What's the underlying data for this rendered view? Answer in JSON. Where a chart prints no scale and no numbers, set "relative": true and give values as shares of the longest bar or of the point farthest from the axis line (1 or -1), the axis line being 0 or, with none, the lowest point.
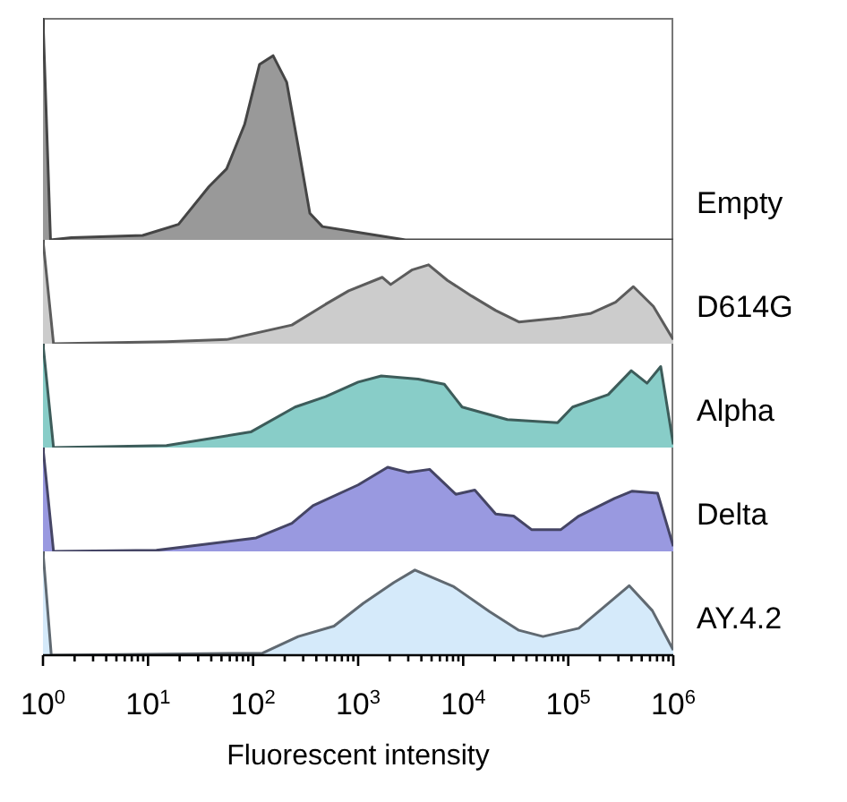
{
  "chart_data": [
    {
      "type": "area",
      "relative": true,
      "log": "x",
      "xlim": [
        1,
        1000000
      ],
      "tick_labels": false,
      "series": [
        {
          "name": "Empty",
          "color": "#999999",
          "x": [
            1,
            1.18,
            1.86,
            8.9,
            19.5,
            38,
            56,
            83,
            115,
            155,
            209,
            269,
            347,
            457,
            1120,
            2820,
            1000000
          ],
          "values": [
            1,
            0,
            0.01,
            0.02,
            0.07,
            0.24,
            0.32,
            0.52,
            0.79,
            0.83,
            0.71,
            0.42,
            0.12,
            0.06,
            0.03,
            0,
            0
          ]
        }
      ]
    },
    {
      "type": "area",
      "relative": true,
      "log": "x",
      "xlim": [
        1,
        1000000
      ],
      "tick_labels": false,
      "series": [
        {
          "name": "D614G",
          "color": "#cccccc",
          "x": [
            1,
            1.26,
            15,
            56,
            234,
            490,
            813,
            1700,
            2040,
            3240,
            4680,
            7080,
            12000,
            20400,
            33900,
            85100,
            162000,
            282000,
            417000,
            646000,
            1000000
          ],
          "values": [
            1,
            0,
            0.02,
            0.04,
            0.18,
            0.38,
            0.51,
            0.64,
            0.57,
            0.71,
            0.76,
            0.61,
            0.46,
            0.32,
            0.21,
            0.25,
            0.29,
            0.4,
            0.55,
            0.36,
            0.04
          ]
        }
      ]
    },
    {
      "type": "area",
      "relative": true,
      "log": "x",
      "xlim": [
        1,
        1000000
      ],
      "tick_labels": false,
      "series": [
        {
          "name": "Alpha",
          "color": "#88cdc8",
          "x": [
            1,
            1.26,
            15,
            95,
            251,
            490,
            1000,
            1660,
            3720,
            6610,
            9770,
            26300,
            79400,
            110000,
            240000,
            398000,
            562000,
            759000,
            1000000
          ],
          "values": [
            1,
            0,
            0.02,
            0.15,
            0.39,
            0.49,
            0.63,
            0.69,
            0.66,
            0.61,
            0.39,
            0.27,
            0.24,
            0.39,
            0.51,
            0.74,
            0.62,
            0.78,
            0.03
          ]
        }
      ]
    },
    {
      "type": "area",
      "relative": true,
      "log": "x",
      "xlim": [
        1,
        1000000
      ],
      "tick_labels": false,
      "series": [
        {
          "name": "Delta",
          "color": "#9999e0",
          "x": [
            1,
            1.26,
            12,
            107,
            234,
            372,
            1000,
            1910,
            3020,
            4790,
            8510,
            12900,
            20400,
            30200,
            44700,
            85100,
            126000,
            275000,
            407000,
            708000,
            1000000
          ],
          "values": [
            1,
            0,
            0.01,
            0.13,
            0.27,
            0.44,
            0.64,
            0.81,
            0.76,
            0.79,
            0.55,
            0.59,
            0.36,
            0.34,
            0.21,
            0.21,
            0.34,
            0.51,
            0.58,
            0.56,
            0.05
          ]
        }
      ]
    },
    {
      "type": "area",
      "relative": true,
      "log": "x",
      "xlim": [
        1,
        1000000
      ],
      "tick_labels": "x",
      "xlabel": "Fluorescent intensity",
      "xticks": [
        {
          "value": 1,
          "label": "10$^{0}$"
        },
        {
          "value": 2,
          "label": null
        },
        {
          "value": 3,
          "label": null
        },
        {
          "value": 4,
          "label": null
        },
        {
          "value": 5,
          "label": null
        },
        {
          "value": 6,
          "label": null
        },
        {
          "value": 7,
          "label": null
        },
        {
          "value": 8,
          "label": null
        },
        {
          "value": 9,
          "label": null
        },
        {
          "value": 10,
          "label": "10$^{1}$"
        },
        {
          "value": 20,
          "label": null
        },
        {
          "value": 30,
          "label": null
        },
        {
          "value": 40,
          "label": null
        },
        {
          "value": 50,
          "label": null
        },
        {
          "value": 60,
          "label": null
        },
        {
          "value": 70,
          "label": null
        },
        {
          "value": 80,
          "label": null
        },
        {
          "value": 90,
          "label": null
        },
        {
          "value": 100,
          "label": "10$^{2}$"
        },
        {
          "value": 200,
          "label": null
        },
        {
          "value": 300,
          "label": null
        },
        {
          "value": 400,
          "label": null
        },
        {
          "value": 500,
          "label": null
        },
        {
          "value": 600,
          "label": null
        },
        {
          "value": 700,
          "label": null
        },
        {
          "value": 800,
          "label": null
        },
        {
          "value": 900,
          "label": null
        },
        {
          "value": 1000,
          "label": "10$^{3}$"
        },
        {
          "value": 2000,
          "label": null
        },
        {
          "value": 3000,
          "label": null
        },
        {
          "value": 4000,
          "label": null
        },
        {
          "value": 5000,
          "label": null
        },
        {
          "value": 6000,
          "label": null
        },
        {
          "value": 7000,
          "label": null
        },
        {
          "value": 8000,
          "label": null
        },
        {
          "value": 9000,
          "label": null
        },
        {
          "value": 10000,
          "label": "10$^{4}$"
        },
        {
          "value": 20000,
          "label": null
        },
        {
          "value": 30000,
          "label": null
        },
        {
          "value": 40000,
          "label": null
        },
        {
          "value": 50000,
          "label": null
        },
        {
          "value": 60000,
          "label": null
        },
        {
          "value": 70000,
          "label": null
        },
        {
          "value": 80000,
          "label": null
        },
        {
          "value": 90000,
          "label": null
        },
        {
          "value": 100000,
          "label": "10$^{5}$"
        },
        {
          "value": 200000,
          "label": null
        },
        {
          "value": 300000,
          "label": null
        },
        {
          "value": 400000,
          "label": null
        },
        {
          "value": 500000,
          "label": null
        },
        {
          "value": 600000,
          "label": null
        },
        {
          "value": 700000,
          "label": null
        },
        {
          "value": 800000,
          "label": null
        },
        {
          "value": 900000,
          "label": null
        },
        {
          "value": 1000000,
          "label": "10$^{6}$"
        }
      ],
      "series": [
        {
          "name": "AY.4.2",
          "color": "#d5eafa",
          "x": [
            1,
            1.2,
            123,
            269,
            589,
            1120,
            2190,
            3470,
            8130,
            17800,
            33900,
            57500,
            126000,
            380000,
            631000,
            1000000
          ],
          "values": [
            1,
            0,
            0.02,
            0.18,
            0.28,
            0.5,
            0.7,
            0.82,
            0.66,
            0.42,
            0.24,
            0.18,
            0.26,
            0.67,
            0.43,
            0.05
          ]
        }
      ]
    }
  ]
}
